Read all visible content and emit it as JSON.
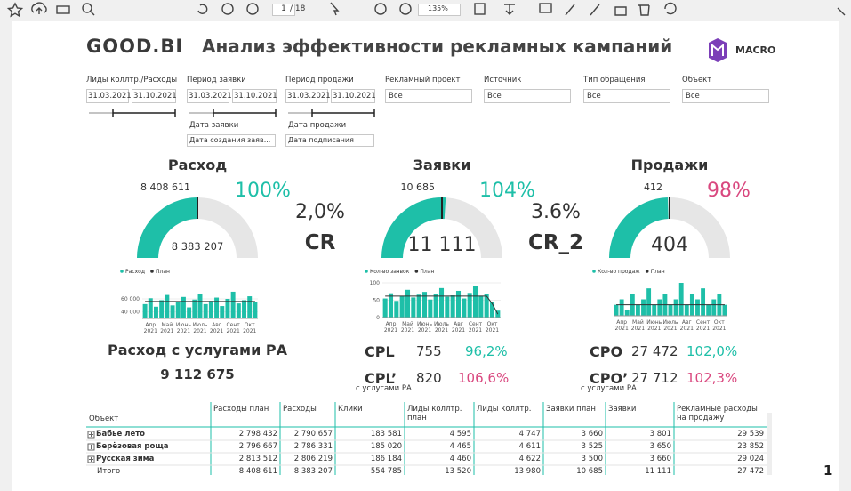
{
  "toolbar": {
    "page": "1",
    "pages": "/ 18",
    "zoom": "135%"
  },
  "header": {
    "logo": "GOOD.BI",
    "title": "Анализ эффективности рекламных кампаний",
    "brand": "MACRO"
  },
  "filters": [
    {
      "label": "Лиды коллтр./Расходы",
      "from": "31.03.2021",
      "to": "31.10.2021"
    },
    {
      "label": "Период заявки",
      "from": "31.03.2021",
      "to": "31.10.2021"
    },
    {
      "label": "Период продажи",
      "from": "31.03.2021",
      "to": "31.10.2021"
    },
    {
      "label": "Рекламный проект",
      "value": "Все"
    },
    {
      "label": "Источник",
      "value": "Все"
    },
    {
      "label": "Тип обращения",
      "value": "Все"
    },
    {
      "label": "Объект",
      "value": "Все"
    },
    {
      "label": "Дата заявки",
      "value": "Дата создания заяв..."
    },
    {
      "label": "Дата продажи",
      "value": "Дата подписания"
    }
  ],
  "gauges": [
    {
      "title": "Расход",
      "target": {
        "value": 8408611,
        "label": "8 408 611"
      },
      "actual": {
        "value": 8383207,
        "label": "8 383 207"
      },
      "percent": "100%",
      "percent_color": "#1ebfa8",
      "trend": {
        "ylim": [
          30000,
          75000
        ],
        "yticks": [
          {
            "value": 60000,
            "label": "60 000"
          },
          {
            "value": 40000,
            "label": "40 000"
          }
        ],
        "x_labels": [
          {
            "month": "Апр",
            "year": "2021"
          },
          {
            "month": "Май",
            "year": "2021"
          },
          {
            "month": "Июнь",
            "year": "2021"
          },
          {
            "month": "Июль",
            "year": "2021"
          },
          {
            "month": "Авг",
            "year": "2021"
          },
          {
            "month": "Сент",
            "year": "2021"
          },
          {
            "month": "Окт",
            "year": "2021"
          }
        ],
        "series": [
          {
            "name": "Расход",
            "color": "#1ebfa8",
            "values": [
              52000,
              61000,
              48000,
              58000,
              66000,
              50000,
              55000,
              63000,
              47000,
              59000,
              68000,
              52000,
              57000,
              62000,
              49000,
              60000,
              71000,
              53000,
              58000,
              64000,
              55000
            ]
          },
          {
            "name": "План",
            "color": "#333333",
            "values": [
              56000,
              56000,
              56000,
              56000,
              56000,
              56000,
              56000,
              56000,
              56000,
              56000,
              56000,
              56000,
              56000,
              56000,
              56000,
              56000,
              56000,
              56000,
              56000,
              56000,
              56000
            ]
          }
        ]
      }
    },
    {
      "title": "Заявки",
      "target": {
        "value": 10685,
        "label": "10 685"
      },
      "actual": {
        "value": 11111,
        "label": "11 111"
      },
      "percent": "104%",
      "percent_color": "#1ebfa8",
      "trend": {
        "ylim": [
          0,
          100
        ],
        "yticks": [
          100,
          50,
          0
        ],
        "x_labels": [
          {
            "month": "Апр",
            "year": "2021"
          },
          {
            "month": "Май",
            "year": "2021"
          },
          {
            "month": "Июнь",
            "year": "2021"
          },
          {
            "month": "Июль",
            "year": "2021"
          },
          {
            "month": "Авг",
            "year": "2021"
          },
          {
            "month": "Сент",
            "year": "2021"
          },
          {
            "month": "Окт",
            "year": "2021"
          }
        ],
        "series": [
          {
            "name": "Кол-во заявок",
            "color": "#1ebfa8",
            "values": [
              55,
              70,
              48,
              62,
              80,
              58,
              66,
              74,
              52,
              69,
              85,
              60,
              64,
              77,
              55,
              71,
              90,
              63,
              68,
              45,
              20
            ]
          },
          {
            "name": "План",
            "color": "#333333",
            "values": [
              62,
              62,
              62,
              62,
              62,
              62,
              62,
              62,
              62,
              62,
              62,
              62,
              62,
              62,
              62,
              62,
              62,
              62,
              62,
              40,
              10
            ]
          }
        ]
      }
    },
    {
      "title": "Продажи",
      "target": {
        "value": 412,
        "label": "412"
      },
      "actual": {
        "value": 404,
        "label": "404"
      },
      "percent": "98%",
      "percent_color": "#d9487f",
      "trend": {
        "ylim": [
          0,
          6
        ],
        "yticks": [],
        "x_labels": [
          {
            "month": "Апр",
            "year": "2021"
          },
          {
            "month": "Май",
            "year": "2021"
          },
          {
            "month": "Июнь",
            "year": "2021"
          },
          {
            "month": "Июль",
            "year": "2021"
          },
          {
            "month": "Авг",
            "year": "2021"
          },
          {
            "month": "Сент",
            "year": "2021"
          },
          {
            "month": "Окт",
            "year": "2021"
          }
        ],
        "series": [
          {
            "name": "Кол-во продаж",
            "color": "#1ebfa8",
            "values": [
              2,
              3,
              1,
              4,
              2,
              3,
              5,
              2,
              3,
              4,
              2,
              3,
              6,
              2,
              4,
              3,
              5,
              2,
              3,
              4,
              2
            ]
          },
          {
            "name": "План",
            "color": "#333333",
            "values": [
              2,
              2,
              2,
              2,
              2,
              2,
              2,
              2,
              2,
              2,
              2,
              2,
              2,
              2,
              2,
              2,
              2,
              2,
              2,
              2,
              2
            ]
          }
        ]
      }
    }
  ],
  "ratios": [
    {
      "value": "2,0%",
      "name": "CR"
    },
    {
      "value": "3.6%",
      "name": "CR_2"
    }
  ],
  "spend_with_agency": {
    "label": "Расход с услугами РА",
    "value": "9 112 675"
  },
  "metrics": [
    {
      "name": "CPL",
      "value": "755",
      "percent": "96,2%",
      "color": "#1ebfa8"
    },
    {
      "name": "CPL’",
      "note": "с услугами РА",
      "value": "820",
      "percent": "106,6%",
      "color": "#d9487f"
    },
    {
      "name": "CPO",
      "value": "27 472",
      "percent": "102,0%",
      "color": "#1ebfa8"
    },
    {
      "name": "CPO’",
      "note": "с услугами РА",
      "value": "27 712",
      "percent": "102,3%",
      "color": "#d9487f"
    }
  ],
  "table": {
    "columns": [
      "Объект",
      "Расходы план",
      "Расходы",
      "Клики",
      "Лиды коллтр. план",
      "Лиды коллтр.",
      "Заявки план",
      "Заявки",
      "Рекламные расходы на продажу"
    ],
    "rows": [
      [
        "Бабье лето",
        "2 798 432",
        "2 790 657",
        "183 581",
        "4 595",
        "4 747",
        "3 660",
        "3 801",
        "29 539"
      ],
      [
        "Берёзовая роща",
        "2 796 667",
        "2 786 331",
        "185 020",
        "4 465",
        "4 611",
        "3 525",
        "3 650",
        "23 852"
      ],
      [
        "Русская зима",
        "2 813 512",
        "2 806 219",
        "186 184",
        "4 460",
        "4 622",
        "3 500",
        "3 660",
        "29 024"
      ],
      [
        "Итого",
        "8 408 611",
        "8 383 207",
        "554 785",
        "13 520",
        "13 980",
        "10 685",
        "11 111",
        "27 472"
      ]
    ]
  },
  "page_number": "1"
}
